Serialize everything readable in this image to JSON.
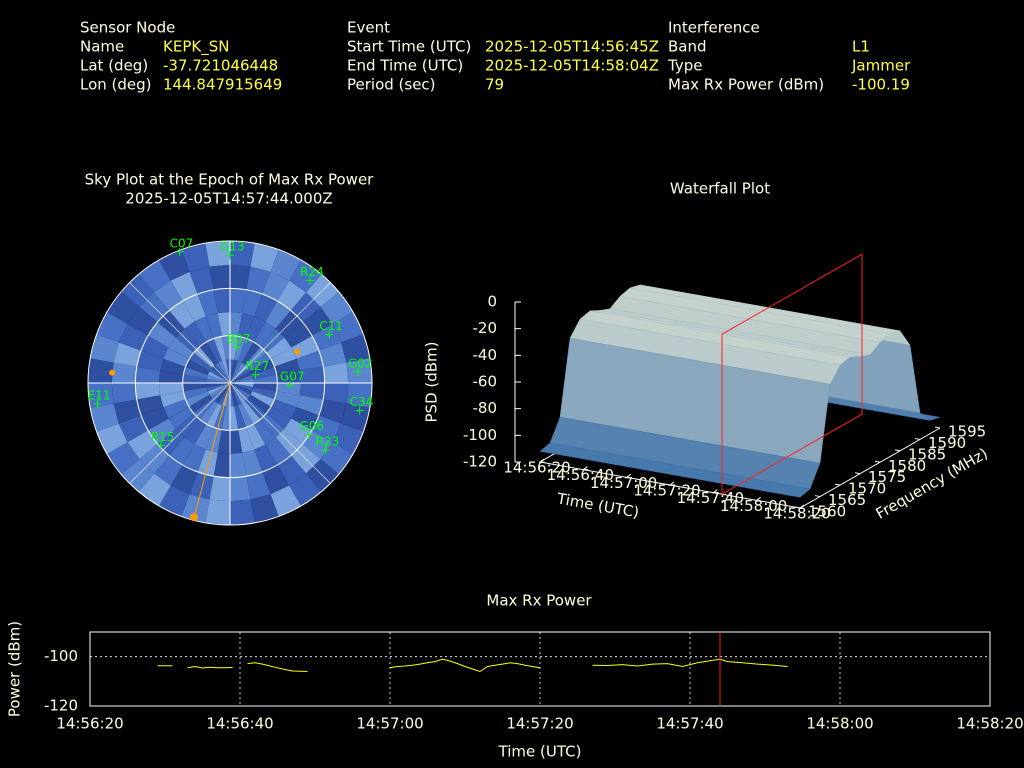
{
  "header": {
    "columns": [
      {
        "title": "Sensor Node",
        "rows": [
          {
            "label": "Name",
            "value": "KEPK_SN"
          },
          {
            "label": "Lat (deg)",
            "value": "-37.721046448"
          },
          {
            "label": "Lon (deg)",
            "value": "144.847915649"
          }
        ]
      },
      {
        "title": "Event",
        "rows": [
          {
            "label": "Start Time (UTC)",
            "value": "2025-12-05T14:56:45Z"
          },
          {
            "label": "End Time (UTC)",
            "value": "2025-12-05T14:58:04Z"
          },
          {
            "label": "Period (sec)",
            "value": "79"
          }
        ]
      },
      {
        "title": "Interference",
        "rows": [
          {
            "label": "Band",
            "value": "L1"
          },
          {
            "label": "Type",
            "value": "Jammer"
          },
          {
            "label": "Max Rx Power (dBm)",
            "value": "-100.19"
          }
        ]
      }
    ]
  },
  "chart_data": [
    {
      "type": "polar-scatter",
      "title": "Sky Plot at the Epoch of Max Rx Power",
      "subtitle": "2025-12-05T14:57:44.000Z",
      "rlim": [
        90,
        0
      ],
      "rticks": [
        0,
        30,
        60,
        90
      ],
      "color": "#00ff00",
      "points": [
        {
          "name": "G02",
          "azimuth": 85,
          "elevation": 8.6
        },
        {
          "name": "R24",
          "azimuth": 38,
          "elevation": 7.5
        },
        {
          "name": "C11",
          "azimuth": 64,
          "elevation": 20
        },
        {
          "name": "C34",
          "azimuth": 102,
          "elevation": 6
        },
        {
          "name": "R23",
          "azimuth": 125,
          "elevation": 16
        },
        {
          "name": "G06",
          "azimuth": 123,
          "elevation": 30
        },
        {
          "name": "B07",
          "azimuth": 11,
          "elevation": 67
        },
        {
          "name": "R27",
          "azimuth": 72,
          "elevation": 73
        },
        {
          "name": "G07",
          "azimuth": 92,
          "elevation": 52
        },
        {
          "name": "G13",
          "azimuth": 0,
          "elevation": 9
        },
        {
          "name": "C07",
          "azimuth": 339,
          "elevation": 1
        },
        {
          "name": "E11",
          "azimuth": 261,
          "elevation": 5
        },
        {
          "name": "R15",
          "azimuth": 228,
          "elevation": 31
        }
      ],
      "markers": [
        {
          "azimuth": 195,
          "elevation": 2
        },
        {
          "azimuth": 65,
          "elevation": 43
        },
        {
          "azimuth": 275,
          "elevation": 15
        }
      ],
      "marker_color": "#ff9900"
    },
    {
      "type": "waterfall",
      "title": "Waterfall Plot",
      "xlabel": "Time (UTC)",
      "ylabel": "Frequency (MHz)",
      "zlabel": "PSD (dBm)",
      "xlim": [
        "14:56:20",
        "14:58:20"
      ],
      "xticks": [
        "14:56:20",
        "14:56:40",
        "14:57:00",
        "14:57:20",
        "14:57:40",
        "14:58:00",
        "14:58:20"
      ],
      "ylim": [
        1560,
        1595
      ],
      "yticks": [
        1560,
        1565,
        1570,
        1575,
        1580,
        1585,
        1590,
        1595
      ],
      "zlim": [
        -120,
        0
      ],
      "zticks": [
        0,
        -20,
        -40,
        -60,
        -80,
        -100,
        -120
      ],
      "frequencies": [
        1560,
        1562.5,
        1565,
        1567.5,
        1570,
        1572.5,
        1575,
        1577.5,
        1580,
        1582.5,
        1585,
        1587.5,
        1590,
        1592.5,
        1595
      ],
      "values": [
        -112,
        -110,
        -95,
        -40,
        -30,
        -28,
        -32,
        -35,
        -30,
        -28,
        -30,
        -45,
        -100,
        -110,
        -112
      ],
      "marker_x": "14:57:44",
      "marker_color": "#ff2020"
    },
    {
      "type": "line",
      "title": "Max Rx Power",
      "xlabel": "Time (UTC)",
      "ylabel": "Power (dBm)",
      "color": "#ffff00",
      "x": [
        "14:56:29",
        "14:56:30",
        "14:56:31",
        "14:56:32",
        "14:56:33",
        "14:56:34",
        "14:56:35",
        "14:56:36",
        "14:56:37",
        "14:56:38",
        "14:56:39",
        "14:56:40",
        "14:56:41",
        "14:56:42",
        "14:56:43",
        "14:56:44",
        "14:56:45",
        "14:56:46",
        "14:56:47",
        "14:56:48",
        "14:56:49",
        "14:56:50",
        "14:57:00",
        "14:57:01",
        "14:57:02",
        "14:57:03",
        "14:57:04",
        "14:57:05",
        "14:57:06",
        "14:57:07",
        "14:57:08",
        "14:57:09",
        "14:57:10",
        "14:57:11",
        "14:57:12",
        "14:57:13",
        "14:57:14",
        "14:57:15",
        "14:57:16",
        "14:57:17",
        "14:57:18",
        "14:57:19",
        "14:57:20",
        "14:57:21",
        "14:57:27",
        "14:57:29",
        "14:57:31",
        "14:57:33",
        "14:57:35",
        "14:57:37",
        "14:57:39",
        "14:57:41",
        "14:57:43",
        "14:57:44",
        "14:57:45",
        "14:57:47",
        "14:57:49",
        "14:57:51",
        "14:57:53"
      ],
      "values": [
        -103.7,
        -103.7,
        -103.7,
        null,
        -104.5,
        -104,
        -104.6,
        -104.3,
        -104.5,
        -104.5,
        -104.4,
        null,
        -102.8,
        -102.5,
        -103,
        -103.8,
        -104.5,
        -105.2,
        -105.8,
        -105.9,
        -106,
        null,
        -104.5,
        -104,
        -103.8,
        -103.5,
        -103,
        -102.5,
        -102,
        -101,
        -101.8,
        -102.8,
        -104,
        -105,
        -106,
        -104,
        -103.5,
        -103,
        -102.5,
        -102.8,
        -103.5,
        -104,
        -104.5,
        null,
        -103.5,
        -103.6,
        -103.2,
        -103.8,
        -103,
        -102.8,
        -104,
        -102.5,
        -101.5,
        -101,
        -102,
        -102.5,
        -103,
        -103.4,
        -104
      ],
      "xlim": [
        "14:56:20",
        "14:58:20"
      ],
      "xticks": [
        "14:56:20",
        "14:56:40",
        "14:57:00",
        "14:57:20",
        "14:57:40",
        "14:58:00",
        "14:58:20"
      ],
      "ylim": [
        -120,
        -90
      ],
      "yticks": [
        -100,
        -120
      ],
      "grid": true,
      "marker_x": "14:57:44",
      "marker_color": "#ff2020"
    }
  ]
}
